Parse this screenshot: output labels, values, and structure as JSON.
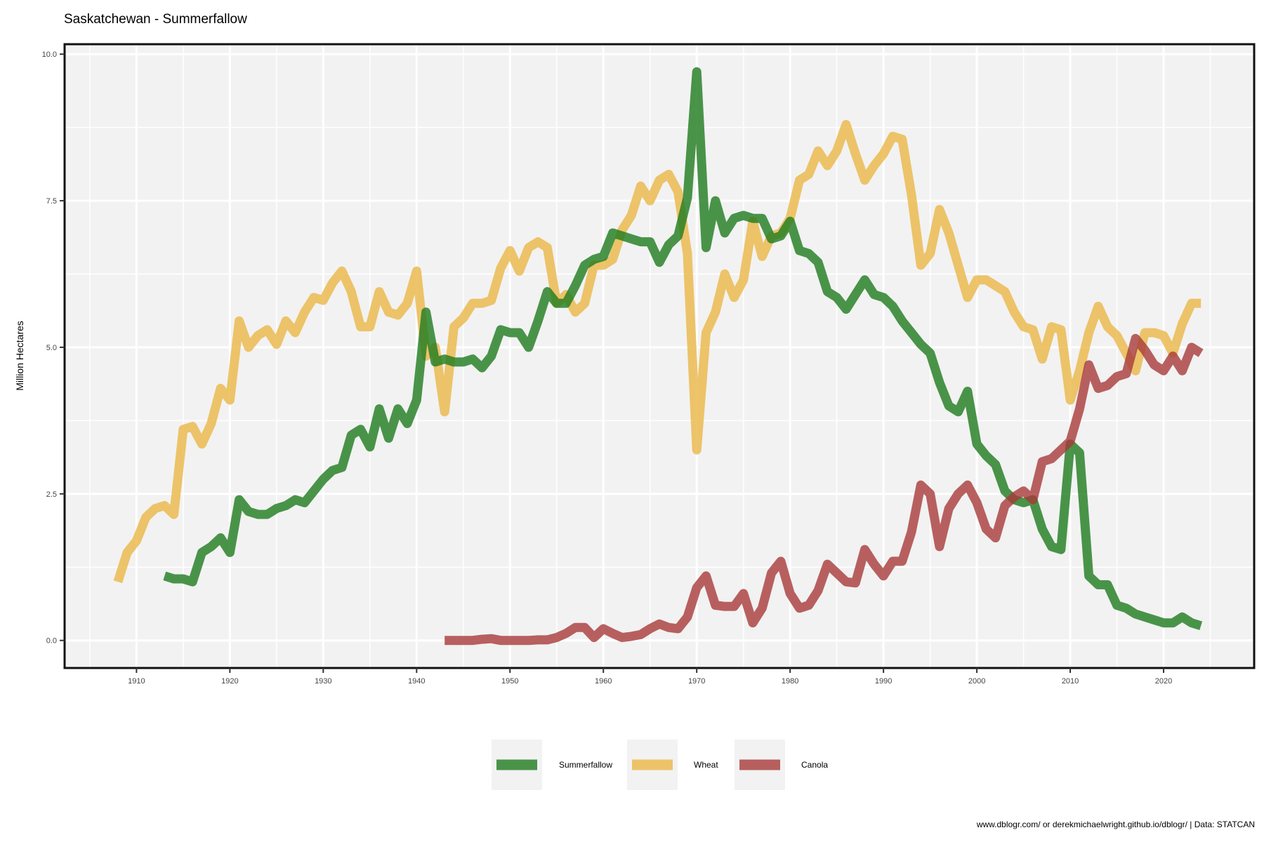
{
  "chart_data": {
    "type": "line",
    "title": "Saskatchewan - Summerfallow",
    "xlabel": "",
    "ylabel": "Million Hectares",
    "xlim": [
      1902.3,
      2029.7
    ],
    "ylim": [
      -0.47,
      10.17
    ],
    "xticks": [
      1910,
      1920,
      1930,
      1940,
      1950,
      1960,
      1970,
      1980,
      1990,
      2000,
      2010,
      2020
    ],
    "yticks": [
      0,
      2.5,
      5,
      7.5,
      10
    ],
    "ytick_labels": [
      "0.0",
      "2.5",
      "5.0",
      "7.5",
      "10.0"
    ],
    "grid": true,
    "legend_position": "bottom",
    "caption": "www.dblogr.com/ or derekmichaelwright.github.io/dblogr/ | Data: STATCAN",
    "series": [
      {
        "name": "Wheat",
        "color": "#eab646",
        "x": [
          1908,
          1909,
          1910,
          1911,
          1912,
          1913,
          1914,
          1915,
          1916,
          1917,
          1918,
          1919,
          1920,
          1921,
          1922,
          1923,
          1924,
          1925,
          1926,
          1927,
          1928,
          1929,
          1930,
          1931,
          1932,
          1933,
          1934,
          1935,
          1936,
          1937,
          1938,
          1939,
          1940,
          1941,
          1942,
          1943,
          1944,
          1945,
          1946,
          1947,
          1948,
          1949,
          1950,
          1951,
          1952,
          1953,
          1954,
          1955,
          1956,
          1957,
          1958,
          1959,
          1960,
          1961,
          1962,
          1963,
          1964,
          1965,
          1966,
          1967,
          1968,
          1969,
          1970,
          1971,
          1972,
          1973,
          1974,
          1975,
          1976,
          1977,
          1978,
          1979,
          1980,
          1981,
          1982,
          1983,
          1984,
          1985,
          1986,
          1987,
          1988,
          1989,
          1990,
          1991,
          1992,
          1993,
          1994,
          1995,
          1996,
          1997,
          1998,
          1999,
          2000,
          2001,
          2002,
          2003,
          2004,
          2005,
          2006,
          2007,
          2008,
          2009,
          2010,
          2011,
          2012,
          2013,
          2014,
          2015,
          2016,
          2017,
          2018,
          2019,
          2020,
          2021,
          2022,
          2023,
          2024
        ],
        "y": [
          1.0,
          1.5,
          1.7,
          2.1,
          2.25,
          2.3,
          2.15,
          3.6,
          3.65,
          3.35,
          3.7,
          4.3,
          4.1,
          5.45,
          5.0,
          5.2,
          5.3,
          5.05,
          5.45,
          5.25,
          5.6,
          5.85,
          5.8,
          6.1,
          6.3,
          5.95,
          5.35,
          5.35,
          5.95,
          5.6,
          5.55,
          5.75,
          6.3,
          4.85,
          5.0,
          3.9,
          5.35,
          5.5,
          5.75,
          5.75,
          5.8,
          6.35,
          6.65,
          6.3,
          6.7,
          6.8,
          6.7,
          5.75,
          5.9,
          5.6,
          5.75,
          6.4,
          6.4,
          6.5,
          7.0,
          7.25,
          7.75,
          7.5,
          7.85,
          7.95,
          7.65,
          6.6,
          3.25,
          5.25,
          5.6,
          6.25,
          5.85,
          6.15,
          7.15,
          6.55,
          6.9,
          6.95,
          7.2,
          7.85,
          7.95,
          8.35,
          8.1,
          8.35,
          8.8,
          8.3,
          7.85,
          8.1,
          8.3,
          8.6,
          8.55,
          7.6,
          6.4,
          6.6,
          7.35,
          6.95,
          6.4,
          5.85,
          6.15,
          6.15,
          6.05,
          5.95,
          5.6,
          5.35,
          5.3,
          4.8,
          5.35,
          5.3,
          4.1,
          4.6,
          5.25,
          5.7,
          5.35,
          5.2,
          4.9,
          4.6,
          5.25,
          5.25,
          5.2,
          4.9,
          5.4,
          5.75,
          5.75
        ]
      },
      {
        "name": "Summerfallow",
        "color": "#1e7a1e",
        "x": [
          1913,
          1914,
          1915,
          1916,
          1917,
          1918,
          1919,
          1920,
          1921,
          1922,
          1923,
          1924,
          1925,
          1926,
          1927,
          1928,
          1929,
          1930,
          1931,
          1932,
          1933,
          1934,
          1935,
          1936,
          1937,
          1938,
          1939,
          1940,
          1941,
          1942,
          1943,
          1944,
          1945,
          1946,
          1947,
          1948,
          1949,
          1950,
          1951,
          1952,
          1953,
          1954,
          1955,
          1956,
          1957,
          1958,
          1959,
          1960,
          1961,
          1962,
          1963,
          1964,
          1965,
          1966,
          1967,
          1968,
          1969,
          1970,
          1971,
          1972,
          1973,
          1974,
          1975,
          1976,
          1977,
          1978,
          1979,
          1980,
          1981,
          1982,
          1983,
          1984,
          1985,
          1986,
          1987,
          1988,
          1989,
          1990,
          1991,
          1992,
          1993,
          1994,
          1995,
          1996,
          1997,
          1998,
          1999,
          2000,
          2001,
          2002,
          2003,
          2004,
          2005,
          2006,
          2007,
          2008,
          2009,
          2010,
          2011,
          2012,
          2013,
          2014,
          2015,
          2016,
          2017,
          2018,
          2019,
          2020,
          2021,
          2022,
          2023,
          2024
        ],
        "y": [
          1.1,
          1.05,
          1.05,
          1.0,
          1.5,
          1.6,
          1.75,
          1.5,
          2.4,
          2.2,
          2.15,
          2.15,
          2.25,
          2.3,
          2.4,
          2.35,
          2.55,
          2.75,
          2.9,
          2.95,
          3.5,
          3.6,
          3.3,
          3.95,
          3.45,
          3.95,
          3.7,
          4.1,
          5.6,
          4.75,
          4.8,
          4.75,
          4.75,
          4.8,
          4.65,
          4.85,
          5.3,
          5.25,
          5.25,
          5.0,
          5.45,
          5.95,
          5.75,
          5.75,
          6.05,
          6.4,
          6.5,
          6.55,
          6.95,
          6.9,
          6.85,
          6.8,
          6.8,
          6.45,
          6.75,
          6.9,
          7.55,
          9.7,
          6.7,
          7.5,
          6.95,
          7.2,
          7.25,
          7.2,
          7.2,
          6.85,
          6.9,
          7.15,
          6.65,
          6.6,
          6.45,
          5.95,
          5.85,
          5.65,
          5.9,
          6.15,
          5.9,
          5.85,
          5.7,
          5.45,
          5.25,
          5.05,
          4.9,
          4.4,
          4.0,
          3.9,
          4.25,
          3.35,
          3.15,
          3.0,
          2.55,
          2.4,
          2.35,
          2.4,
          1.9,
          1.6,
          1.55,
          3.35,
          3.2,
          1.1,
          0.95,
          0.95,
          0.6,
          0.55,
          0.45,
          0.4,
          0.35,
          0.3,
          0.3,
          0.4,
          0.3,
          0.25
        ]
      },
      {
        "name": "Canola",
        "color": "#a83a3a",
        "x": [
          1943,
          1944,
          1945,
          1946,
          1947,
          1948,
          1949,
          1950,
          1951,
          1952,
          1953,
          1954,
          1955,
          1956,
          1957,
          1958,
          1959,
          1960,
          1961,
          1962,
          1963,
          1964,
          1965,
          1966,
          1967,
          1968,
          1969,
          1970,
          1971,
          1972,
          1973,
          1974,
          1975,
          1976,
          1977,
          1978,
          1979,
          1980,
          1981,
          1982,
          1983,
          1984,
          1985,
          1986,
          1987,
          1988,
          1989,
          1990,
          1991,
          1992,
          1993,
          1994,
          1995,
          1996,
          1997,
          1998,
          1999,
          2000,
          2001,
          2002,
          2003,
          2004,
          2005,
          2006,
          2007,
          2008,
          2009,
          2010,
          2011,
          2012,
          2013,
          2014,
          2015,
          2016,
          2017,
          2018,
          2019,
          2020,
          2021,
          2022,
          2023,
          2024
        ],
        "y": [
          0.0,
          0.0,
          0.0,
          0.0,
          0.02,
          0.03,
          0.0,
          0.0,
          0.0,
          0.0,
          0.01,
          0.01,
          0.05,
          0.12,
          0.22,
          0.22,
          0.05,
          0.2,
          0.12,
          0.05,
          0.07,
          0.1,
          0.2,
          0.28,
          0.22,
          0.2,
          0.4,
          0.9,
          1.1,
          0.6,
          0.58,
          0.58,
          0.8,
          0.3,
          0.55,
          1.15,
          1.35,
          0.8,
          0.55,
          0.6,
          0.85,
          1.3,
          1.15,
          1.0,
          0.98,
          1.55,
          1.3,
          1.1,
          1.35,
          1.35,
          1.85,
          2.65,
          2.5,
          1.6,
          2.25,
          2.5,
          2.65,
          2.35,
          1.9,
          1.75,
          2.3,
          2.45,
          2.55,
          2.4,
          3.05,
          3.1,
          3.25,
          3.4,
          3.95,
          4.7,
          4.3,
          4.35,
          4.5,
          4.55,
          5.15,
          4.95,
          4.7,
          4.6,
          4.85,
          4.6,
          5.0,
          4.9
        ]
      }
    ]
  },
  "legend": {
    "items": [
      {
        "name": "Summerfallow",
        "color": "#1e7a1e"
      },
      {
        "name": "Wheat",
        "color": "#eab646"
      },
      {
        "name": "Canola",
        "color": "#a83a3a"
      }
    ]
  }
}
